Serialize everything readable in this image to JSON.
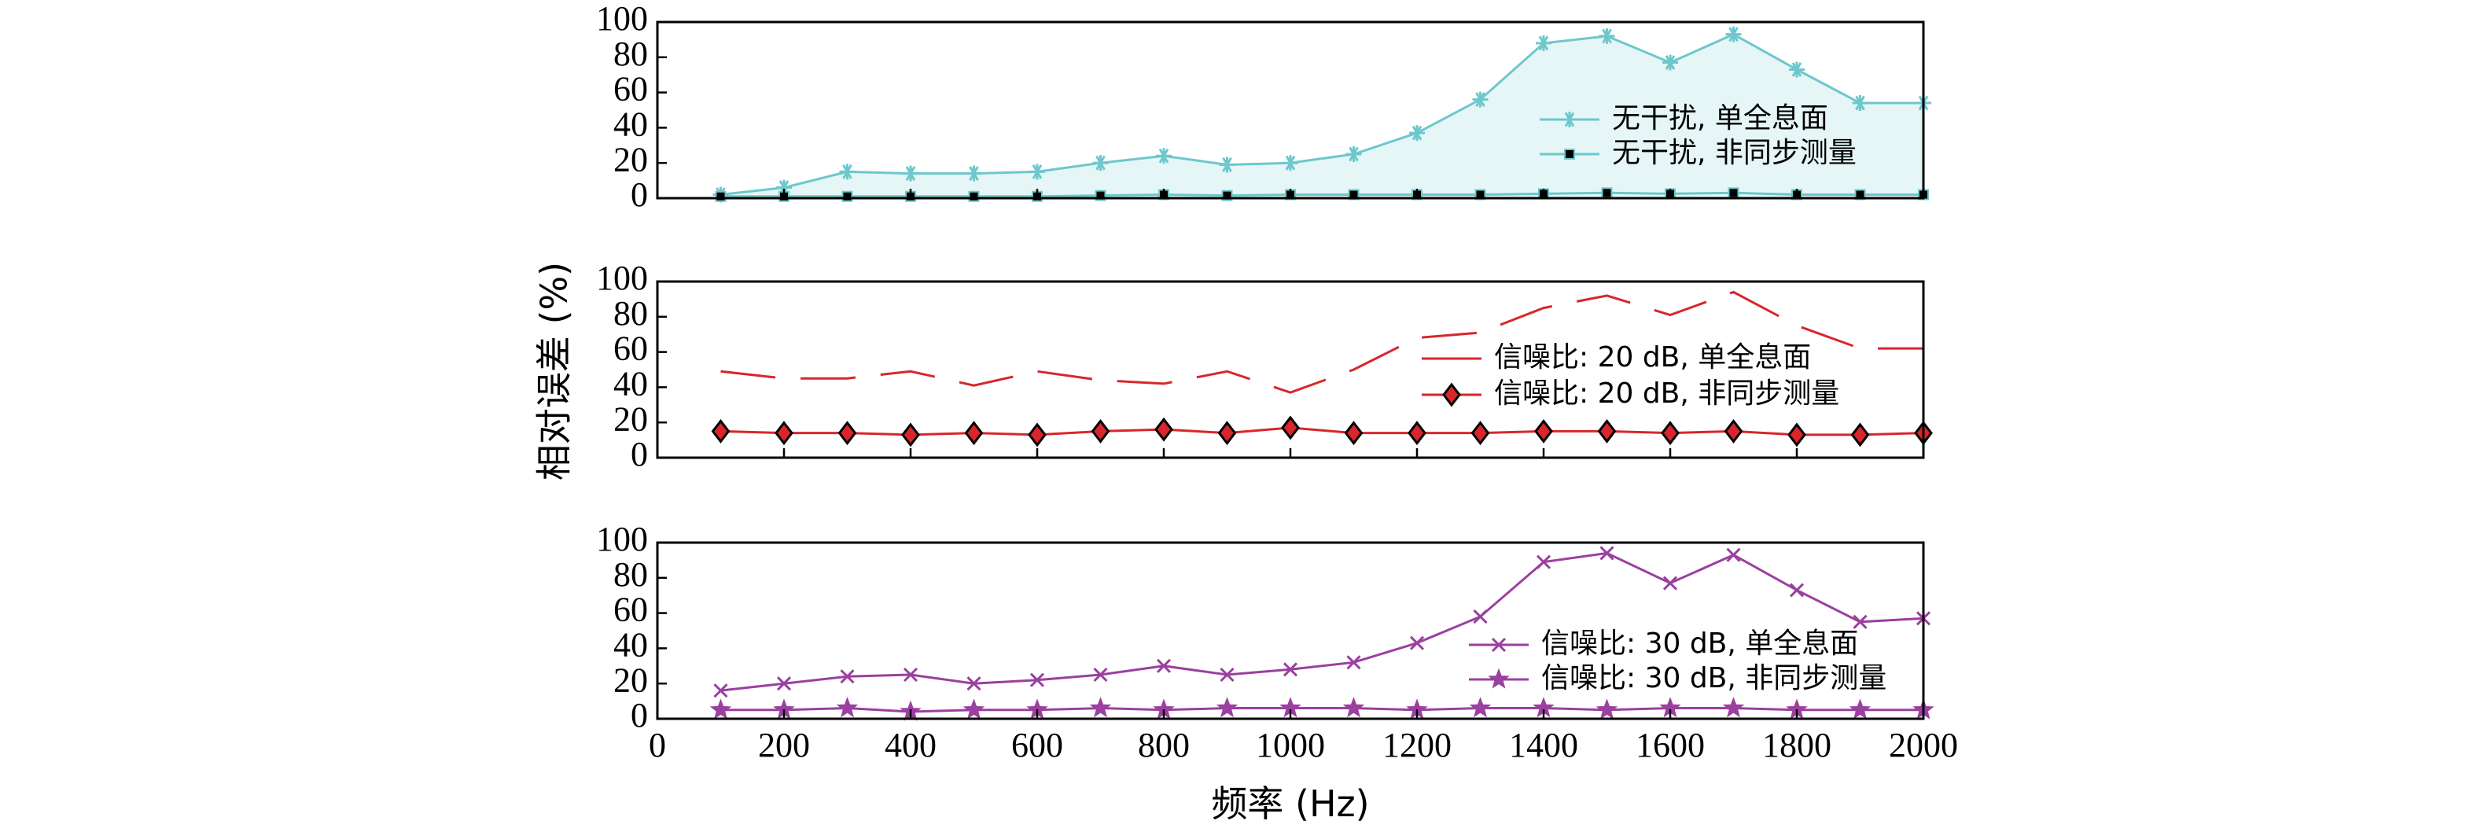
{
  "chart_data": [
    {
      "type": "line",
      "panel": "top",
      "x": [
        100,
        200,
        300,
        400,
        500,
        600,
        700,
        800,
        900,
        1000,
        1100,
        1200,
        1300,
        1400,
        1500,
        1600,
        1700,
        1800,
        1900,
        2000
      ],
      "xlim": [
        0,
        2000
      ],
      "ylim": [
        0,
        100
      ],
      "yticks": [
        0,
        20,
        40,
        60,
        80,
        100
      ],
      "legend_position": "right",
      "series": [
        {
          "name": "无干扰, 单全息面",
          "color": "#6cc8cc",
          "marker": "asterisk",
          "line": "solid",
          "fill_color": "#e6f6f6",
          "values": [
            2,
            6,
            15,
            14,
            14,
            15,
            20,
            24,
            19,
            20,
            25,
            37,
            56,
            88,
            92,
            77,
            93,
            73,
            54,
            54
          ]
        },
        {
          "name": "无干扰, 非同步测量",
          "color": "#6cc8cc",
          "marker": "square",
          "line": "solid",
          "values": [
            1,
            1,
            1,
            1,
            1,
            1,
            1.5,
            2,
            1.5,
            2,
            2,
            2,
            2,
            2.5,
            3,
            2.5,
            3,
            2,
            2,
            2
          ]
        }
      ]
    },
    {
      "type": "line",
      "panel": "middle",
      "x": [
        100,
        200,
        300,
        400,
        500,
        600,
        700,
        800,
        900,
        1000,
        1100,
        1200,
        1300,
        1400,
        1500,
        1600,
        1700,
        1800,
        1900,
        2000
      ],
      "xlim": [
        0,
        2000
      ],
      "ylim": [
        0,
        100
      ],
      "yticks": [
        0,
        20,
        40,
        60,
        80,
        100
      ],
      "legend_position": "right",
      "series": [
        {
          "name": "信噪比: 20 dB, 单全息面",
          "color": "#d8262c",
          "marker": "none",
          "line": "dashed",
          "values": [
            49,
            45,
            45,
            49,
            41,
            49,
            44,
            42,
            49,
            37,
            50,
            68,
            71,
            85,
            92,
            81,
            94,
            75,
            62,
            62
          ]
        },
        {
          "name": "信噪比: 20 dB, 非同步测量",
          "color": "#d8262c",
          "marker": "diamond",
          "line": "solid",
          "values": [
            15,
            14,
            14,
            13,
            14,
            13,
            15,
            16,
            14,
            17,
            14,
            14,
            14,
            15,
            15,
            14,
            15,
            13,
            13,
            14
          ]
        }
      ]
    },
    {
      "type": "line",
      "panel": "bottom",
      "x": [
        100,
        200,
        300,
        400,
        500,
        600,
        700,
        800,
        900,
        1000,
        1100,
        1200,
        1300,
        1400,
        1500,
        1600,
        1700,
        1800,
        1900,
        2000
      ],
      "xlim": [
        0,
        2000
      ],
      "ylim": [
        0,
        100
      ],
      "xticks": [
        0,
        200,
        400,
        600,
        800,
        1000,
        1200,
        1400,
        1600,
        1800,
        2000
      ],
      "yticks": [
        0,
        20,
        40,
        60,
        80,
        100
      ],
      "xlabel": "频率 (Hz)",
      "legend_position": "right",
      "series": [
        {
          "name": "信噪比: 30 dB, 单全息面",
          "color": "#9b3fa0",
          "marker": "x",
          "line": "solid",
          "values": [
            16,
            20,
            24,
            25,
            20,
            22,
            25,
            30,
            25,
            28,
            32,
            43,
            58,
            89,
            94,
            77,
            93,
            73,
            55,
            57
          ]
        },
        {
          "name": "信噪比: 30 dB, 非同步测量",
          "color": "#9b3fa0",
          "marker": "star",
          "line": "solid",
          "values": [
            5,
            5,
            6,
            4,
            5,
            5,
            6,
            5,
            6,
            6,
            6,
            5,
            6,
            6,
            5,
            6,
            6,
            5,
            5,
            5
          ]
        }
      ]
    }
  ],
  "ylabel": "相对误差 (%)"
}
